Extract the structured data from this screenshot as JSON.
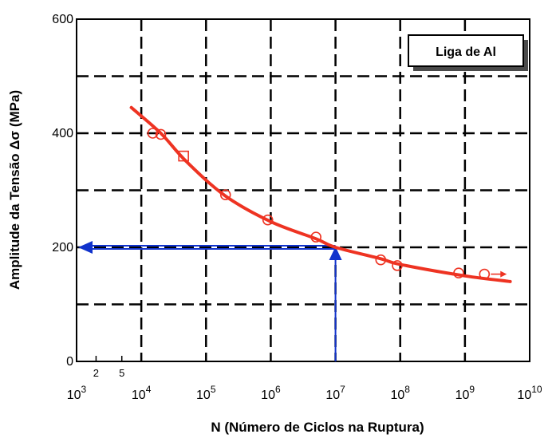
{
  "chart_data": {
    "type": "line",
    "ylabel": "Amplitude da Tensão Δσ (MPa)",
    "xlabel": "N (Número de Ciclos na Ruptura)",
    "legend": {
      "text": "Liga de Al",
      "position": "top-right"
    },
    "xscale": "log",
    "xlim": [
      1000,
      10000000000
    ],
    "ylim": [
      0,
      600
    ],
    "grid": true,
    "x_ticks": [
      {
        "value": 1000,
        "base": "10",
        "exp": "3"
      },
      {
        "value": 10000,
        "base": "10",
        "exp": "4"
      },
      {
        "value": 100000,
        "base": "10",
        "exp": "5"
      },
      {
        "value": 1000000,
        "base": "10",
        "exp": "6"
      },
      {
        "value": 10000000,
        "base": "10",
        "exp": "7"
      },
      {
        "value": 100000000,
        "base": "10",
        "exp": "8"
      },
      {
        "value": 1000000000,
        "base": "10",
        "exp": "9"
      },
      {
        "value": 10000000000,
        "base": "10",
        "exp": "10"
      }
    ],
    "x_minor_ticks": [
      {
        "value": 2000,
        "label": "2"
      },
      {
        "value": 5000,
        "label": "5"
      }
    ],
    "y_ticks": [
      {
        "value": 0,
        "label": "0"
      },
      {
        "value": 200,
        "label": "200"
      },
      {
        "value": 400,
        "label": "400"
      },
      {
        "value": 600,
        "label": "600"
      }
    ],
    "y_grid_values": [
      0,
      100,
      200,
      300,
      400,
      500
    ],
    "series": [
      {
        "kind": "fit-curve",
        "color": "#ee3322",
        "x": [
          7000,
          20000,
          50000,
          200000,
          1000000,
          5000000,
          10000000,
          50000000,
          100000000,
          1000000000,
          5000000000
        ],
        "y": [
          445,
          400,
          350,
          290,
          245,
          215,
          200,
          180,
          170,
          150,
          140
        ]
      },
      {
        "kind": "data-points",
        "color": "#ee3322",
        "points": [
          {
            "x": 15000,
            "y": 400,
            "marker": "circle"
          },
          {
            "x": 20000,
            "y": 398,
            "marker": "circle"
          },
          {
            "x": 45000,
            "y": 360,
            "marker": "square"
          },
          {
            "x": 200000,
            "y": 292,
            "marker": "circle"
          },
          {
            "x": 900000,
            "y": 248,
            "marker": "circle"
          },
          {
            "x": 5000000,
            "y": 218,
            "marker": "circle"
          },
          {
            "x": 50000000,
            "y": 178,
            "marker": "circle"
          },
          {
            "x": 90000000,
            "y": 168,
            "marker": "circle"
          },
          {
            "x": 800000000,
            "y": 155,
            "marker": "circle"
          },
          {
            "x": 2000000000,
            "y": 153,
            "marker": "circle"
          }
        ]
      }
    ],
    "annotations": [
      {
        "kind": "reading-guide",
        "color": "#1133cc",
        "x": 10000000,
        "y": 200
      }
    ]
  }
}
